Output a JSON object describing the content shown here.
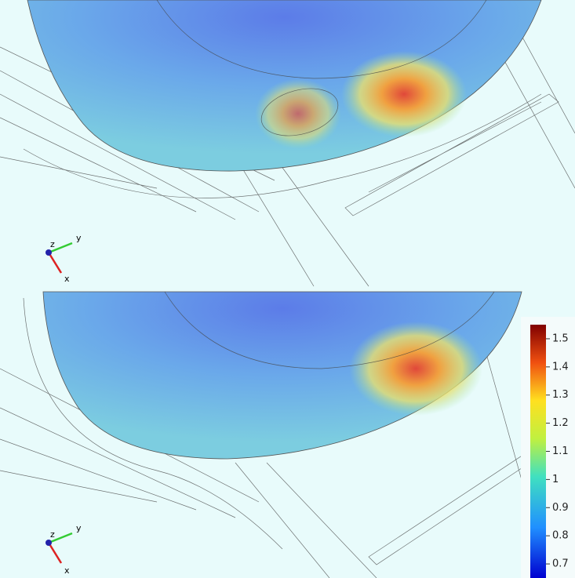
{
  "panels": [
    {
      "triad": {
        "x": "x",
        "y": "y",
        "z": "z"
      }
    },
    {
      "triad": {
        "x": "x",
        "y": "y",
        "z": "z"
      }
    }
  ],
  "colorbar": {
    "range": [
      0.65,
      1.55
    ],
    "ticks": [
      0.7,
      0.8,
      0.9,
      1,
      1.1,
      1.2,
      1.3,
      1.4,
      1.5
    ]
  }
}
